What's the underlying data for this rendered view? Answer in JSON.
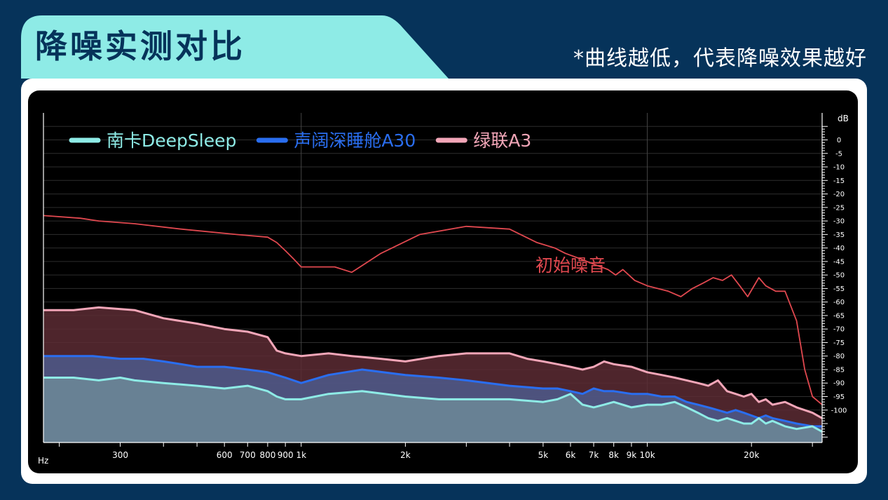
{
  "header": {
    "title": "降噪实测对比",
    "subtitle": "*曲线越低，代表降噪效果越好"
  },
  "colors": {
    "background": "#06335a",
    "title_tab": "#8eebe6",
    "plot_background": "#000000",
    "grid": "#3a3a3a"
  },
  "chart_data": {
    "type": "area",
    "title": "",
    "xlabel": "Hz",
    "ylabel": "dB",
    "x_scale": "log",
    "xlim": [
      180,
      32000
    ],
    "ylim": [
      -112,
      10
    ],
    "x_ticks": [
      300,
      600,
      700,
      800,
      900,
      1000,
      2000,
      5000,
      6000,
      7000,
      8000,
      9000,
      10000,
      20000
    ],
    "x_tick_labels": [
      "300",
      "600",
      "700",
      "800",
      "900",
      "1k",
      "2k",
      "5k",
      "6k",
      "7k",
      "8k",
      "9k",
      "10k",
      "20k"
    ],
    "y_ticks": [
      0,
      -5,
      -10,
      -15,
      -20,
      -25,
      -30,
      -35,
      -40,
      -45,
      -50,
      -55,
      -60,
      -65,
      -70,
      -75,
      -80,
      -85,
      -90,
      -95,
      -100
    ],
    "grid": true,
    "legend_position": "top-left",
    "annotation": "初始噪音",
    "reference": {
      "name": "",
      "color": "#e0484f",
      "x": [
        180,
        230,
        260,
        330,
        450,
        650,
        800,
        850,
        900,
        950,
        1000,
        1100,
        1250,
        1400,
        1700,
        2200,
        3000,
        4000,
        4800,
        5400,
        5800,
        6400,
        7000,
        7700,
        8100,
        8500,
        9200,
        10000,
        11500,
        12500,
        13500,
        14500,
        15500,
        16500,
        17500,
        18500,
        19500,
        21000,
        22000,
        23500,
        25000,
        27000,
        28500,
        30000,
        32000
      ],
      "y": [
        -28,
        -29,
        -30,
        -31,
        -33,
        -35,
        -36,
        -38,
        -41,
        -44,
        -47,
        -47,
        -47,
        -49,
        -42,
        -35,
        -32,
        -33,
        -38,
        -40,
        -42,
        -44,
        -46,
        -48,
        -50,
        -48,
        -52,
        -54,
        -56,
        -58,
        -55,
        -53,
        -51,
        -52,
        -50,
        -54,
        -58,
        -51,
        -54,
        -56,
        -56,
        -67,
        -85,
        -95,
        -98
      ]
    },
    "series": [
      {
        "name": "南卡DeepSleep",
        "color": "#8eebe6",
        "fill": "#6d8a98",
        "x": [
          180,
          190,
          220,
          260,
          300,
          330,
          400,
          500,
          600,
          700,
          800,
          850,
          900,
          1000,
          1200,
          1500,
          2000,
          2500,
          3000,
          4000,
          5000,
          5500,
          6000,
          6500,
          7000,
          7500,
          8000,
          9000,
          10000,
          11000,
          12000,
          13000,
          14000,
          15000,
          16000,
          17000,
          18000,
          19000,
          20000,
          21000,
          22000,
          23000,
          25000,
          27000,
          30000,
          32000
        ],
        "y": [
          -88,
          -88,
          -88,
          -89,
          -88,
          -89,
          -90,
          -91,
          -92,
          -91,
          -93,
          -95,
          -96,
          -96,
          -94,
          -93,
          -95,
          -96,
          -96,
          -96,
          -97,
          -96,
          -94,
          -98,
          -99,
          -98,
          -97,
          -99,
          -98,
          -98,
          -97,
          -99,
          -101,
          -103,
          -104,
          -103,
          -104,
          -105,
          -105,
          -103,
          -105,
          -104,
          -106,
          -107,
          -106,
          -108
        ]
      },
      {
        "name": "声阔深睡舱A30",
        "color": "#2a6ef0",
        "fill": "#4d5a8c",
        "x": [
          180,
          190,
          250,
          300,
          350,
          400,
          450,
          500,
          600,
          700,
          800,
          900,
          1000,
          1200,
          1500,
          2000,
          2500,
          3000,
          4000,
          5000,
          5500,
          6000,
          6500,
          7000,
          7500,
          8000,
          9000,
          10000,
          11000,
          12000,
          13000,
          14000,
          15000,
          16000,
          17000,
          18000,
          19000,
          20000,
          21000,
          22000,
          23000,
          25000,
          27000,
          30000,
          32000
        ],
        "y": [
          -80,
          -80,
          -80,
          -81,
          -81,
          -82,
          -83,
          -84,
          -84,
          -85,
          -86,
          -88,
          -90,
          -87,
          -85,
          -87,
          -88,
          -89,
          -91,
          -92,
          -92,
          -93,
          -94,
          -92,
          -93,
          -93,
          -94,
          -94,
          -95,
          -95,
          -97,
          -98,
          -99,
          -100,
          -101,
          -100,
          -101,
          -102,
          -103,
          -102,
          -103,
          -104,
          -105,
          -106,
          -106
        ]
      },
      {
        "name": "绿联A3",
        "color": "#f2a6b8",
        "fill": "#5c2b34",
        "x": [
          180,
          190,
          220,
          260,
          330,
          400,
          500,
          600,
          700,
          800,
          850,
          900,
          1000,
          1200,
          1400,
          1700,
          2000,
          2500,
          3000,
          4000,
          4500,
          5000,
          5500,
          6000,
          6500,
          7000,
          7500,
          8000,
          9000,
          10000,
          11000,
          12000,
          13000,
          14000,
          15000,
          16000,
          17000,
          18000,
          19000,
          20000,
          21000,
          22000,
          23000,
          25000,
          27000,
          30000,
          32000
        ],
        "y": [
          -63,
          -63,
          -63,
          -62,
          -63,
          -66,
          -68,
          -70,
          -71,
          -73,
          -78,
          -79,
          -80,
          -79,
          -80,
          -81,
          -82,
          -80,
          -79,
          -79,
          -81,
          -82,
          -83,
          -84,
          -85,
          -84,
          -82,
          -83,
          -84,
          -86,
          -87,
          -88,
          -89,
          -90,
          -91,
          -89,
          -93,
          -94,
          -95,
          -94,
          -97,
          -96,
          -98,
          -97,
          -99,
          -101,
          -103
        ]
      }
    ]
  }
}
